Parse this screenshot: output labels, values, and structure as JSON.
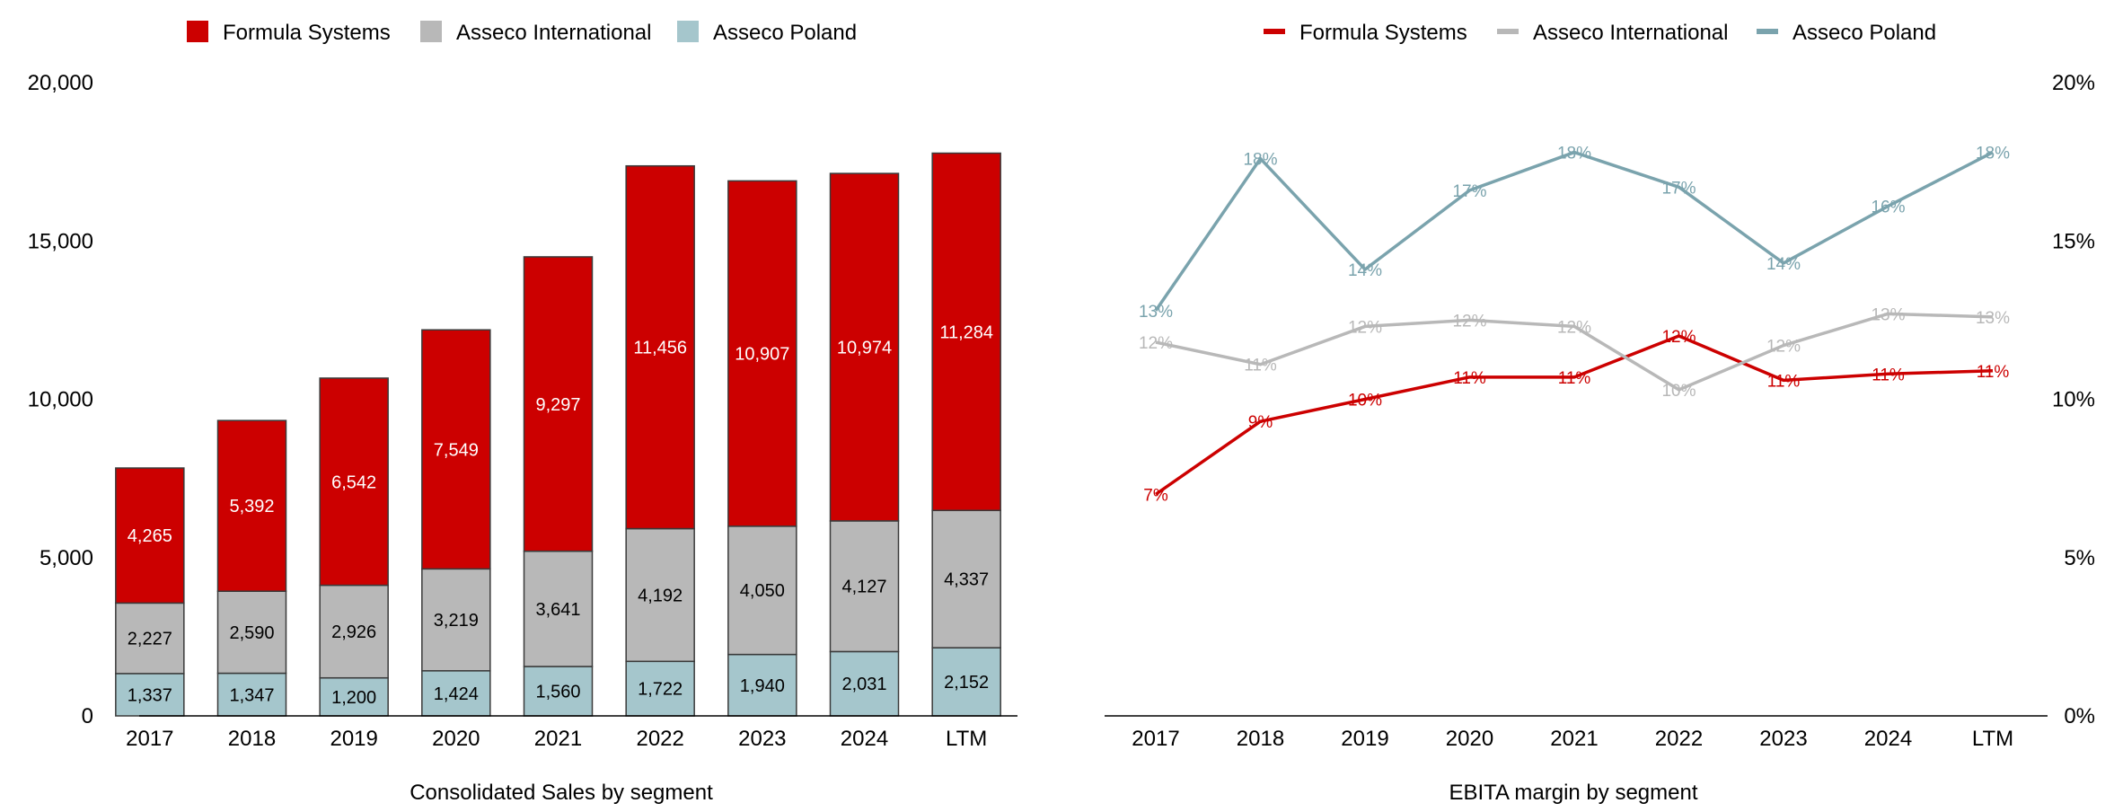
{
  "chart_data": [
    {
      "type": "bar",
      "stacked": true,
      "title": "Consolidated Sales by segment",
      "xlabel": "Consolidated Sales by segment",
      "ylabel": "",
      "categories": [
        "2017",
        "2018",
        "2019",
        "2020",
        "2021",
        "2022",
        "2023",
        "2024",
        "LTM"
      ],
      "ylim": [
        0,
        20000
      ],
      "yticks": [
        0,
        5000,
        10000,
        15000,
        20000
      ],
      "ytick_labels": [
        "0",
        "5,000",
        "10,000",
        "15,000",
        "20,000"
      ],
      "legend_position": "top-left",
      "series": [
        {
          "name": "Asseco Poland",
          "color": "#a5c6cc",
          "values": [
            1337,
            1347,
            1200,
            1424,
            1560,
            1722,
            1940,
            2031,
            2152
          ],
          "labels": [
            "1,337",
            "1,347",
            "1,200",
            "1,424",
            "1,560",
            "1,722",
            "1,940",
            "2,031",
            "2,152"
          ],
          "label_color": "#000000"
        },
        {
          "name": "Asseco International",
          "color": "#b8b8b8",
          "values": [
            2227,
            2590,
            2926,
            3219,
            3641,
            4192,
            4050,
            4127,
            4337
          ],
          "labels": [
            "2,227",
            "2,590",
            "2,926",
            "3,219",
            "3,641",
            "4,192",
            "4,050",
            "4,127",
            "4,337"
          ],
          "label_color": "#000000"
        },
        {
          "name": "Formula Systems",
          "color": "#cc0000",
          "values": [
            4265,
            5392,
            6542,
            7549,
            9297,
            11456,
            10907,
            10974,
            11284
          ],
          "labels": [
            "4,265",
            "5,392",
            "6,542",
            "7,549",
            "9,297",
            "11,456",
            "10,907",
            "10,974",
            "11,284"
          ],
          "label_color": "#ffffff"
        }
      ],
      "legend": [
        "Formula Systems",
        "Asseco International",
        "Asseco Poland"
      ]
    },
    {
      "type": "line",
      "title": "EBITA margin by segment",
      "xlabel": "EBITA margin by segment",
      "ylabel": "",
      "categories": [
        "2017",
        "2018",
        "2019",
        "2020",
        "2021",
        "2022",
        "2023",
        "2024",
        "LTM"
      ],
      "ylim": [
        0,
        20
      ],
      "yticks": [
        0,
        5,
        10,
        15,
        20
      ],
      "ytick_labels": [
        "0%",
        "5%",
        "10%",
        "15%",
        "20%"
      ],
      "y_axis_side": "right",
      "legend_position": "top-center",
      "series": [
        {
          "name": "Formula Systems",
          "color": "#cc0000",
          "values": [
            7.0,
            9.3,
            10.0,
            10.7,
            10.7,
            12.0,
            10.6,
            10.8,
            10.9
          ],
          "labels": [
            "7%",
            "9%",
            "10%",
            "11%",
            "11%",
            "12%",
            "11%",
            "11%",
            "11%"
          ]
        },
        {
          "name": "Asseco International",
          "color": "#b8b8b8",
          "values": [
            11.8,
            11.1,
            12.3,
            12.5,
            12.3,
            10.3,
            11.7,
            12.7,
            12.6
          ],
          "labels": [
            "12%",
            "11%",
            "12%",
            "12%",
            "12%",
            "10%",
            "12%",
            "13%",
            "13%"
          ]
        },
        {
          "name": "Asseco Poland",
          "color": "#7aa3ad",
          "values": [
            12.8,
            17.6,
            14.1,
            16.6,
            17.8,
            16.7,
            14.3,
            16.1,
            17.8
          ],
          "labels": [
            "13%",
            "18%",
            "14%",
            "17%",
            "18%",
            "17%",
            "14%",
            "16%",
            "18%"
          ]
        }
      ],
      "legend": [
        "Formula Systems",
        "Asseco International",
        "Asseco Poland"
      ]
    }
  ]
}
